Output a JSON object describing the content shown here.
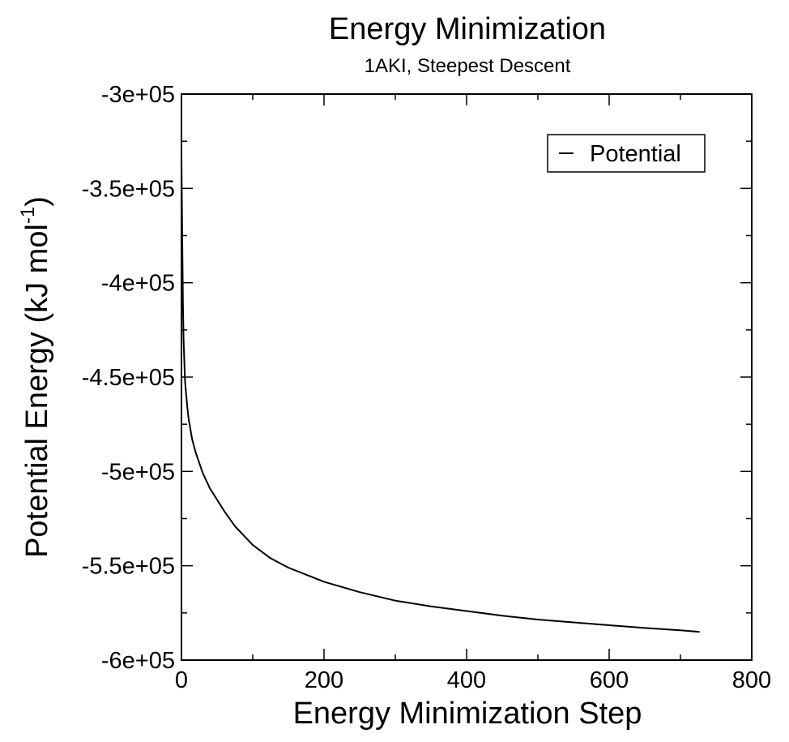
{
  "chart_data": {
    "type": "line",
    "title": "Energy Minimization",
    "subtitle": "1AKI, Steepest Descent",
    "xlabel": "Energy Minimization Step",
    "ylabel_main": "Potential Energy (kJ mol",
    "ylabel_sup": "-1",
    "ylabel_close": ")",
    "xlim": [
      0,
      800
    ],
    "ylim": [
      -600000,
      -300000
    ],
    "x_ticks": [
      0,
      200,
      400,
      600,
      800
    ],
    "x_tick_labels": [
      "0",
      "200",
      "400",
      "600",
      "800"
    ],
    "x_minor_step": 100,
    "y_ticks": [
      -600000,
      -550000,
      -500000,
      -450000,
      -400000,
      -350000,
      -300000
    ],
    "y_tick_labels": [
      "-6e+05",
      "-5.5e+05",
      "-5e+05",
      "-4.5e+05",
      "-4e+05",
      "-3.5e+05",
      "-3e+05"
    ],
    "y_minor_step": 25000,
    "grid": false,
    "legend": {
      "position": "top-right",
      "entries": [
        "Potential"
      ]
    },
    "series": [
      {
        "name": "Potential",
        "color": "#000000",
        "x": [
          0,
          1,
          2,
          3,
          5,
          8,
          10,
          15,
          20,
          30,
          40,
          50,
          60,
          75,
          100,
          125,
          150,
          200,
          250,
          300,
          350,
          400,
          450,
          500,
          550,
          600,
          650,
          700,
          726
        ],
        "y": [
          -333000,
          -373000,
          -410000,
          -430000,
          -452000,
          -465000,
          -472000,
          -483000,
          -490000,
          -501000,
          -509000,
          -515000,
          -521000,
          -529000,
          -539000,
          -546000,
          -551000,
          -558500,
          -564000,
          -568500,
          -571500,
          -574000,
          -576500,
          -578500,
          -580000,
          -581500,
          -583000,
          -584200,
          -585000
        ]
      }
    ]
  }
}
